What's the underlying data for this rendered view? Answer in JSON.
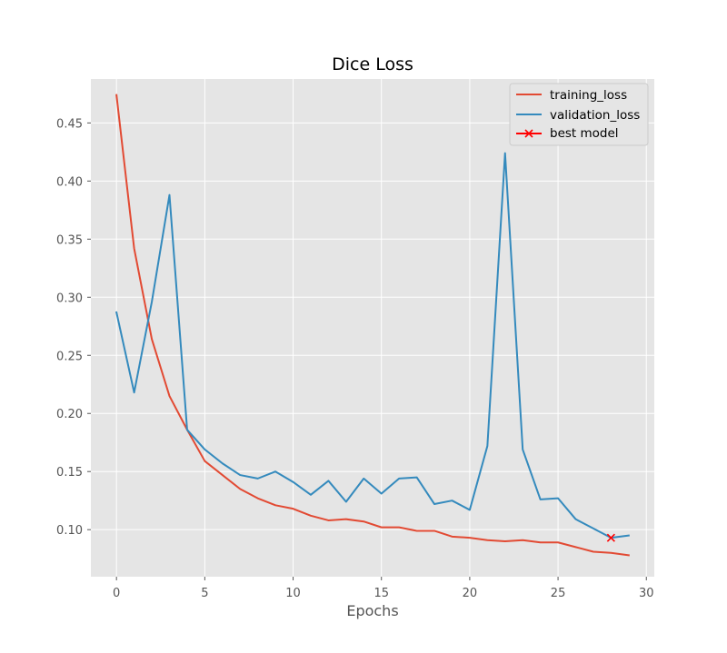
{
  "chart_data": {
    "type": "line",
    "title": "Dice Loss",
    "xlabel": "Epochs",
    "ylabel": "",
    "xlim": [
      -1.45,
      30.45
    ],
    "ylim": [
      0.0595,
      0.4878
    ],
    "xticks": [
      0,
      5,
      10,
      15,
      20,
      25,
      30
    ],
    "yticks": [
      0.1,
      0.15,
      0.2,
      0.25,
      0.3,
      0.35,
      0.4,
      0.45
    ],
    "xtick_labels": [
      "0",
      "5",
      "10",
      "15",
      "20",
      "25",
      "30"
    ],
    "ytick_labels": [
      "0.10",
      "0.15",
      "0.20",
      "0.25",
      "0.30",
      "0.35",
      "0.40",
      "0.45"
    ],
    "grid": true,
    "legend_position": "top-right",
    "x": [
      0,
      1,
      2,
      3,
      4,
      5,
      6,
      7,
      8,
      9,
      10,
      11,
      12,
      13,
      14,
      15,
      16,
      17,
      18,
      19,
      20,
      21,
      22,
      23,
      24,
      25,
      26,
      27,
      28,
      29
    ],
    "series": [
      {
        "name": "training_loss",
        "color": "#e24a33",
        "values": [
          0.474,
          0.342,
          0.264,
          0.215,
          0.186,
          0.159,
          0.147,
          0.135,
          0.127,
          0.121,
          0.118,
          0.112,
          0.108,
          0.109,
          0.107,
          0.102,
          0.102,
          0.099,
          0.099,
          0.094,
          0.093,
          0.091,
          0.09,
          0.091,
          0.089,
          0.089,
          0.085,
          0.081,
          0.08,
          0.078
        ]
      },
      {
        "name": "validation_loss",
        "color": "#348abd",
        "values": [
          0.287,
          0.218,
          0.296,
          0.388,
          0.186,
          0.169,
          0.157,
          0.147,
          0.144,
          0.15,
          0.141,
          0.13,
          0.142,
          0.124,
          0.144,
          0.131,
          0.144,
          0.145,
          0.122,
          0.125,
          0.117,
          0.172,
          0.424,
          0.169,
          0.126,
          0.127,
          0.109,
          0.101,
          0.093,
          0.095
        ]
      }
    ],
    "best_model": {
      "name": "best model",
      "color": "#ff0000",
      "x": 28,
      "y": 0.093
    }
  }
}
